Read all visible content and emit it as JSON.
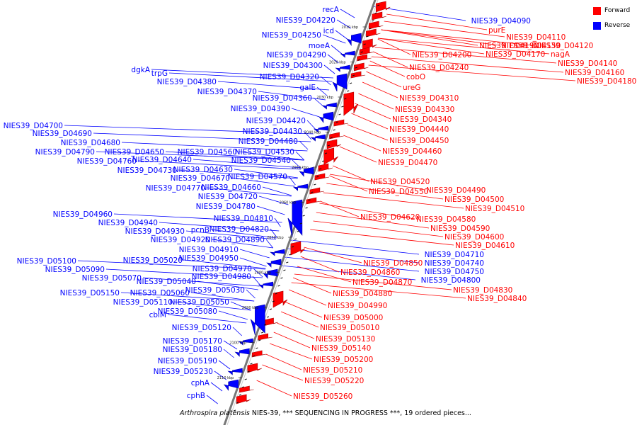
{
  "caption": {
    "organism": "Arthrospira platensis",
    "text": " NIES-39, *** SEQUENCING IN PROGRESS ***, 19 ordered pieces..."
  },
  "legend": [
    {
      "label": "Forward",
      "color": "#ff0000"
    },
    {
      "label": "Reverse",
      "color": "#0000ff"
    }
  ],
  "colors": {
    "forward": "#ff0000",
    "reverse": "#0000ff",
    "backbone": "#777777"
  },
  "ticks": [
    "2010 kbp",
    "2020 kbp",
    "2030 kbp",
    "2040 kbp",
    "2050 kbp",
    "2060 kbp",
    "2070 kbp",
    "2080 kbp",
    "2090 kbp",
    "2100 kbp",
    "2110 kbp"
  ],
  "reverse_labels": [
    "recA",
    "NIES39_D04220",
    "icd",
    "NIES39_D04250",
    "moeA",
    "NIES39_D04290",
    "NIES39_D04300",
    "NIES39_D04320",
    "dgkA",
    "trpG",
    "NIES39_D04380",
    "galE",
    "NIES39_D04370",
    "NIES39_D04360",
    "NIES39_D04390",
    "NIES39_D04420",
    "NIES39_D04700",
    "NIES39_D04430",
    "NIES39_D04690",
    "NIES39_D04480",
    "NIES39_D04680",
    "NIES39_D04790",
    "NIES39_D04650",
    "NIES39_D04560",
    "NIES39_D04530",
    "NIES39_D04640",
    "NIES39_D04760",
    "NIES39_D04540",
    "NIES39_D04730",
    "NIES39_D04630",
    "NIES39_D04570",
    "NIES39_D04670",
    "NIES39_D04770",
    "NIES39_D04660",
    "NIES39_D04720",
    "NIES39_D04780",
    "NIES39_D04960",
    "NIES39_D04940",
    "NIES39_D04810",
    "pcnB",
    "NIES39_D04930",
    "NIES39_D04820",
    "NIES39_D04920",
    "NIES39_D04890",
    "NIES39_D04910",
    "NIES39_D05100",
    "NIES39_D05020",
    "NIES39_D04950",
    "NIES39_D05090",
    "NIES39_D04970",
    "NIES39_D05070",
    "NIES39_D04980",
    "NIES39_D05040",
    "NIES39_D05030",
    "NIES39_D05150",
    "NIES39_D05060",
    "NIES39_D05110",
    "NIES39_D05050",
    "cbiM",
    "NIES39_D05080",
    "NIES39_D05120",
    "NIES39_D05170",
    "NIES39_D05180",
    "NIES39_D05190",
    "NIES39_D05230",
    "cphA",
    "cphB",
    "NIES39_D04710",
    "NIES39_D04740",
    "NIES39_D04750",
    "NIES39_D04800",
    "NIES39_D04090"
  ],
  "forward_labels": [
    "purE",
    "NIES39_D04110",
    "NIES39_D04190",
    "NIES39_D04150",
    "NIES39_D04120",
    "NIES39_D04170",
    "nagA",
    "NIES39_D04200",
    "NIES39_D04140",
    "NIES39_D04240",
    "NIES39_D04160",
    "cobO",
    "NIES39_D04180",
    "ureG",
    "NIES39_D04310",
    "NIES39_D04330",
    "NIES39_D04340",
    "NIES39_D04440",
    "NIES39_D04450",
    "NIES39_D04460",
    "NIES39_D04470",
    "NIES39_D04520",
    "NIES39_D04490",
    "NIES39_D04550",
    "NIES39_D04500",
    "NIES39_D04510",
    "NIES39_D04620",
    "NIES39_D04580",
    "NIES39_D04590",
    "NIES39_D04600",
    "NIES39_D04610",
    "NIES39_D04850",
    "NIES39_D04860",
    "NIES39_D04870",
    "NIES39_D04830",
    "NIES39_D04880",
    "NIES39_D04840",
    "NIES39_D04990",
    "NIES39_D05000",
    "NIES39_D05010",
    "NIES39_D05130",
    "NIES39_D05140",
    "NIES39_D05200",
    "NIES39_D05210",
    "NIES39_D05220",
    "NIES39_D05260"
  ]
}
